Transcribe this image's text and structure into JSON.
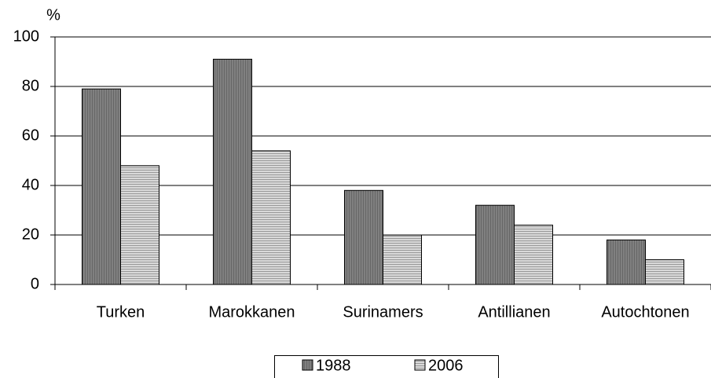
{
  "chart_data": {
    "type": "bar",
    "y_label": "%",
    "categories": [
      "Turken",
      "Marokkanen",
      "Surinamers",
      "Antillianen",
      "Autochtonen"
    ],
    "series": [
      {
        "name": "1988",
        "color": "#808080",
        "values": [
          79,
          91,
          38,
          32,
          18
        ]
      },
      {
        "name": "2006",
        "color": "#d9d9d9",
        "values": [
          48,
          54,
          20,
          24,
          10
        ]
      }
    ],
    "ylim": [
      0,
      100
    ],
    "yticks": [
      0,
      20,
      40,
      60,
      80,
      100
    ],
    "grid": true
  }
}
